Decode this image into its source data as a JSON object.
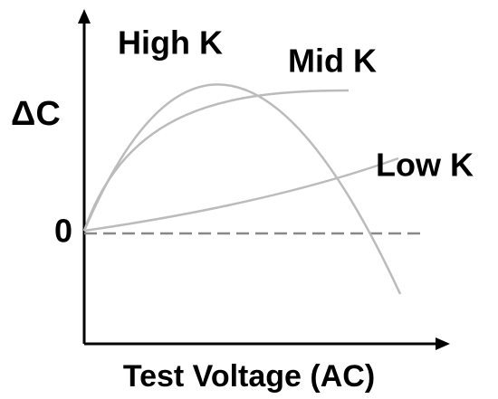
{
  "labels": {
    "y_axis": "ΔC",
    "zero": "0",
    "x_axis": "Test Voltage (AC)"
  },
  "curves": [
    {
      "label": "High K"
    },
    {
      "label": "Mid K"
    },
    {
      "label": "Low K"
    }
  ]
}
